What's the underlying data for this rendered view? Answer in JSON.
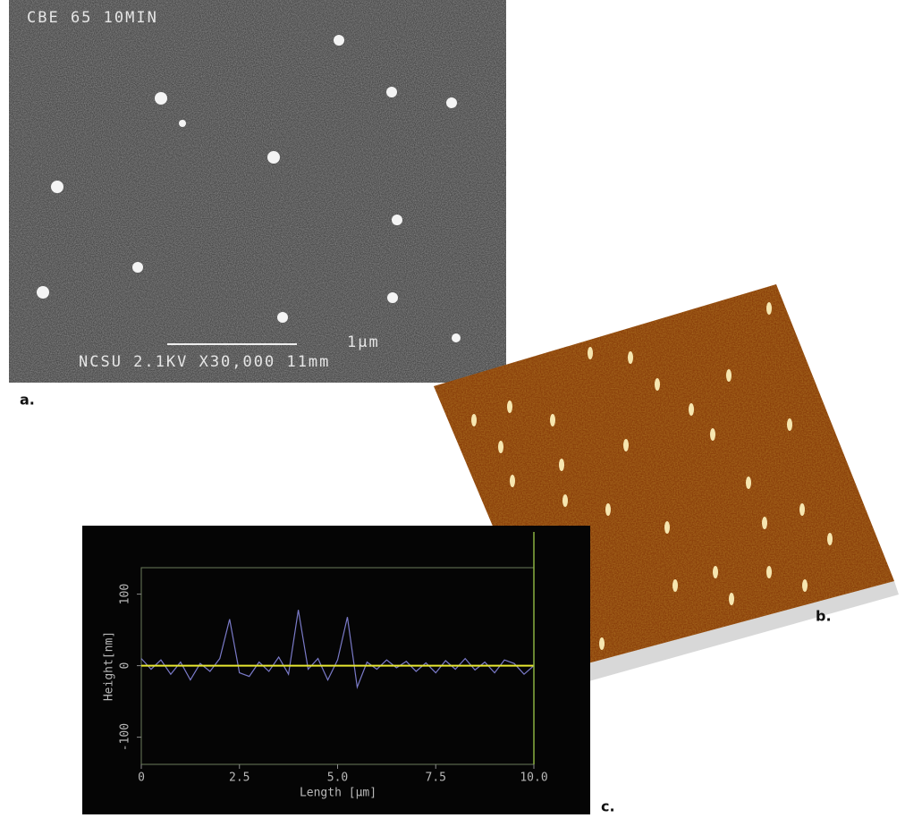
{
  "panels": {
    "a": {
      "label": "a.",
      "header": "CBE 65 10MIN",
      "scale_bar": "1μm",
      "footer": "NCSU 2.1KV X30,000 11mm"
    },
    "b": {
      "label": "b."
    },
    "c": {
      "label": "c."
    }
  },
  "chart_data": {
    "type": "line",
    "x_label": "Length [µm]",
    "y_label": "Height[nm]",
    "xlim": [
      0,
      10
    ],
    "ylim": [
      -138,
      137
    ],
    "xticks": [
      0,
      2.5,
      {
        "value": 5,
        "label": "5.0"
      },
      7.5,
      {
        "value": 10,
        "label": "10.0"
      }
    ],
    "yticks": [
      -100,
      0,
      100
    ],
    "series": [
      {
        "color": "#7a7ac8",
        "x": [
          0,
          0.25,
          0.5,
          0.75,
          1,
          1.25,
          1.5,
          1.75,
          2,
          2.25,
          2.5,
          2.75,
          3,
          3.25,
          3.5,
          3.75,
          4,
          4.25,
          4.5,
          4.75,
          5,
          5.25,
          5.5,
          5.75,
          6,
          6.25,
          6.5,
          6.75,
          7,
          7.25,
          7.5,
          7.75,
          8,
          8.25,
          8.5,
          8.75,
          9,
          9.25,
          9.5,
          9.75,
          10
        ],
        "values": [
          10,
          -5,
          8,
          -12,
          5,
          -20,
          3,
          -8,
          10,
          65,
          -10,
          -15,
          5,
          -8,
          12,
          -12,
          78,
          -5,
          10,
          -20,
          8,
          68,
          -30,
          5,
          -5,
          8,
          -3,
          6,
          -8,
          4,
          -10,
          7,
          -5,
          10,
          -6,
          5,
          -10,
          8,
          3,
          -12,
          0
        ]
      },
      {
        "color": "#e8e830",
        "x": [
          0,
          10
        ],
        "values": [
          0,
          0
        ]
      }
    ]
  }
}
